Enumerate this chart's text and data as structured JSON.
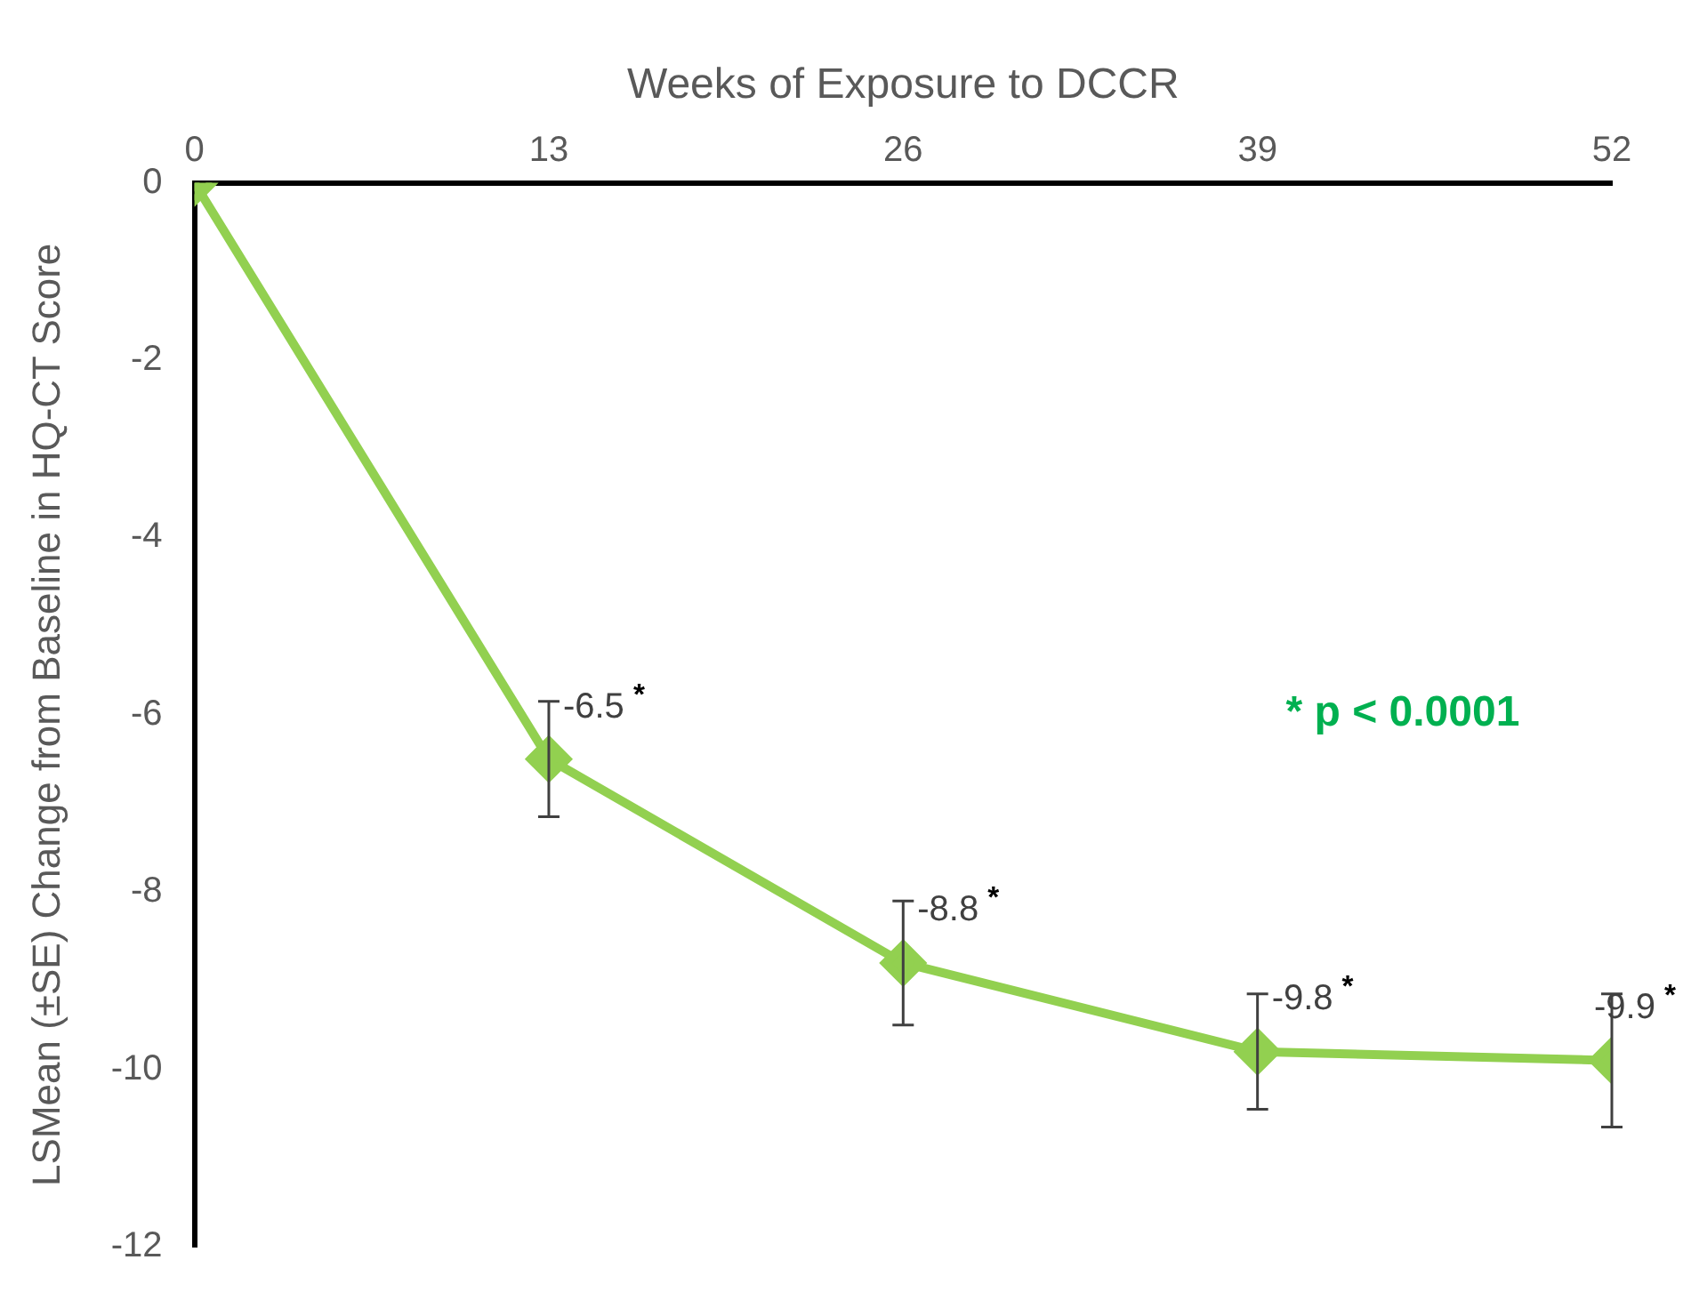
{
  "chart_data": {
    "type": "line",
    "xlabel": "Weeks of Exposure to DCCR",
    "ylabel": "LSMean (±SE) Change from Baseline in HQ-CT Score",
    "x": [
      0,
      13,
      26,
      39,
      52
    ],
    "series": [
      {
        "color": "#92d050",
        "values": [
          0,
          -6.5,
          -8.8,
          -9.8,
          -9.9
        ],
        "errors": [
          null,
          0.65,
          0.7,
          0.65,
          0.75
        ],
        "value_labels": [
          null,
          "-6.5$^{*}$",
          "-8.8$^{*}$",
          "-9.8$^{*}$",
          "-9.9$^{*}$"
        ]
      }
    ],
    "xlim": [
      0,
      52
    ],
    "xticks": [
      0,
      13,
      26,
      39,
      52
    ],
    "ylim": [
      -12,
      0
    ],
    "yticks": [
      0,
      -2,
      -4,
      -6,
      -8,
      -10,
      -12
    ],
    "annotations": [
      "* p < 0.0001"
    ],
    "marker": "diamond",
    "line_style": "solid",
    "grid": false,
    "legend": false
  }
}
